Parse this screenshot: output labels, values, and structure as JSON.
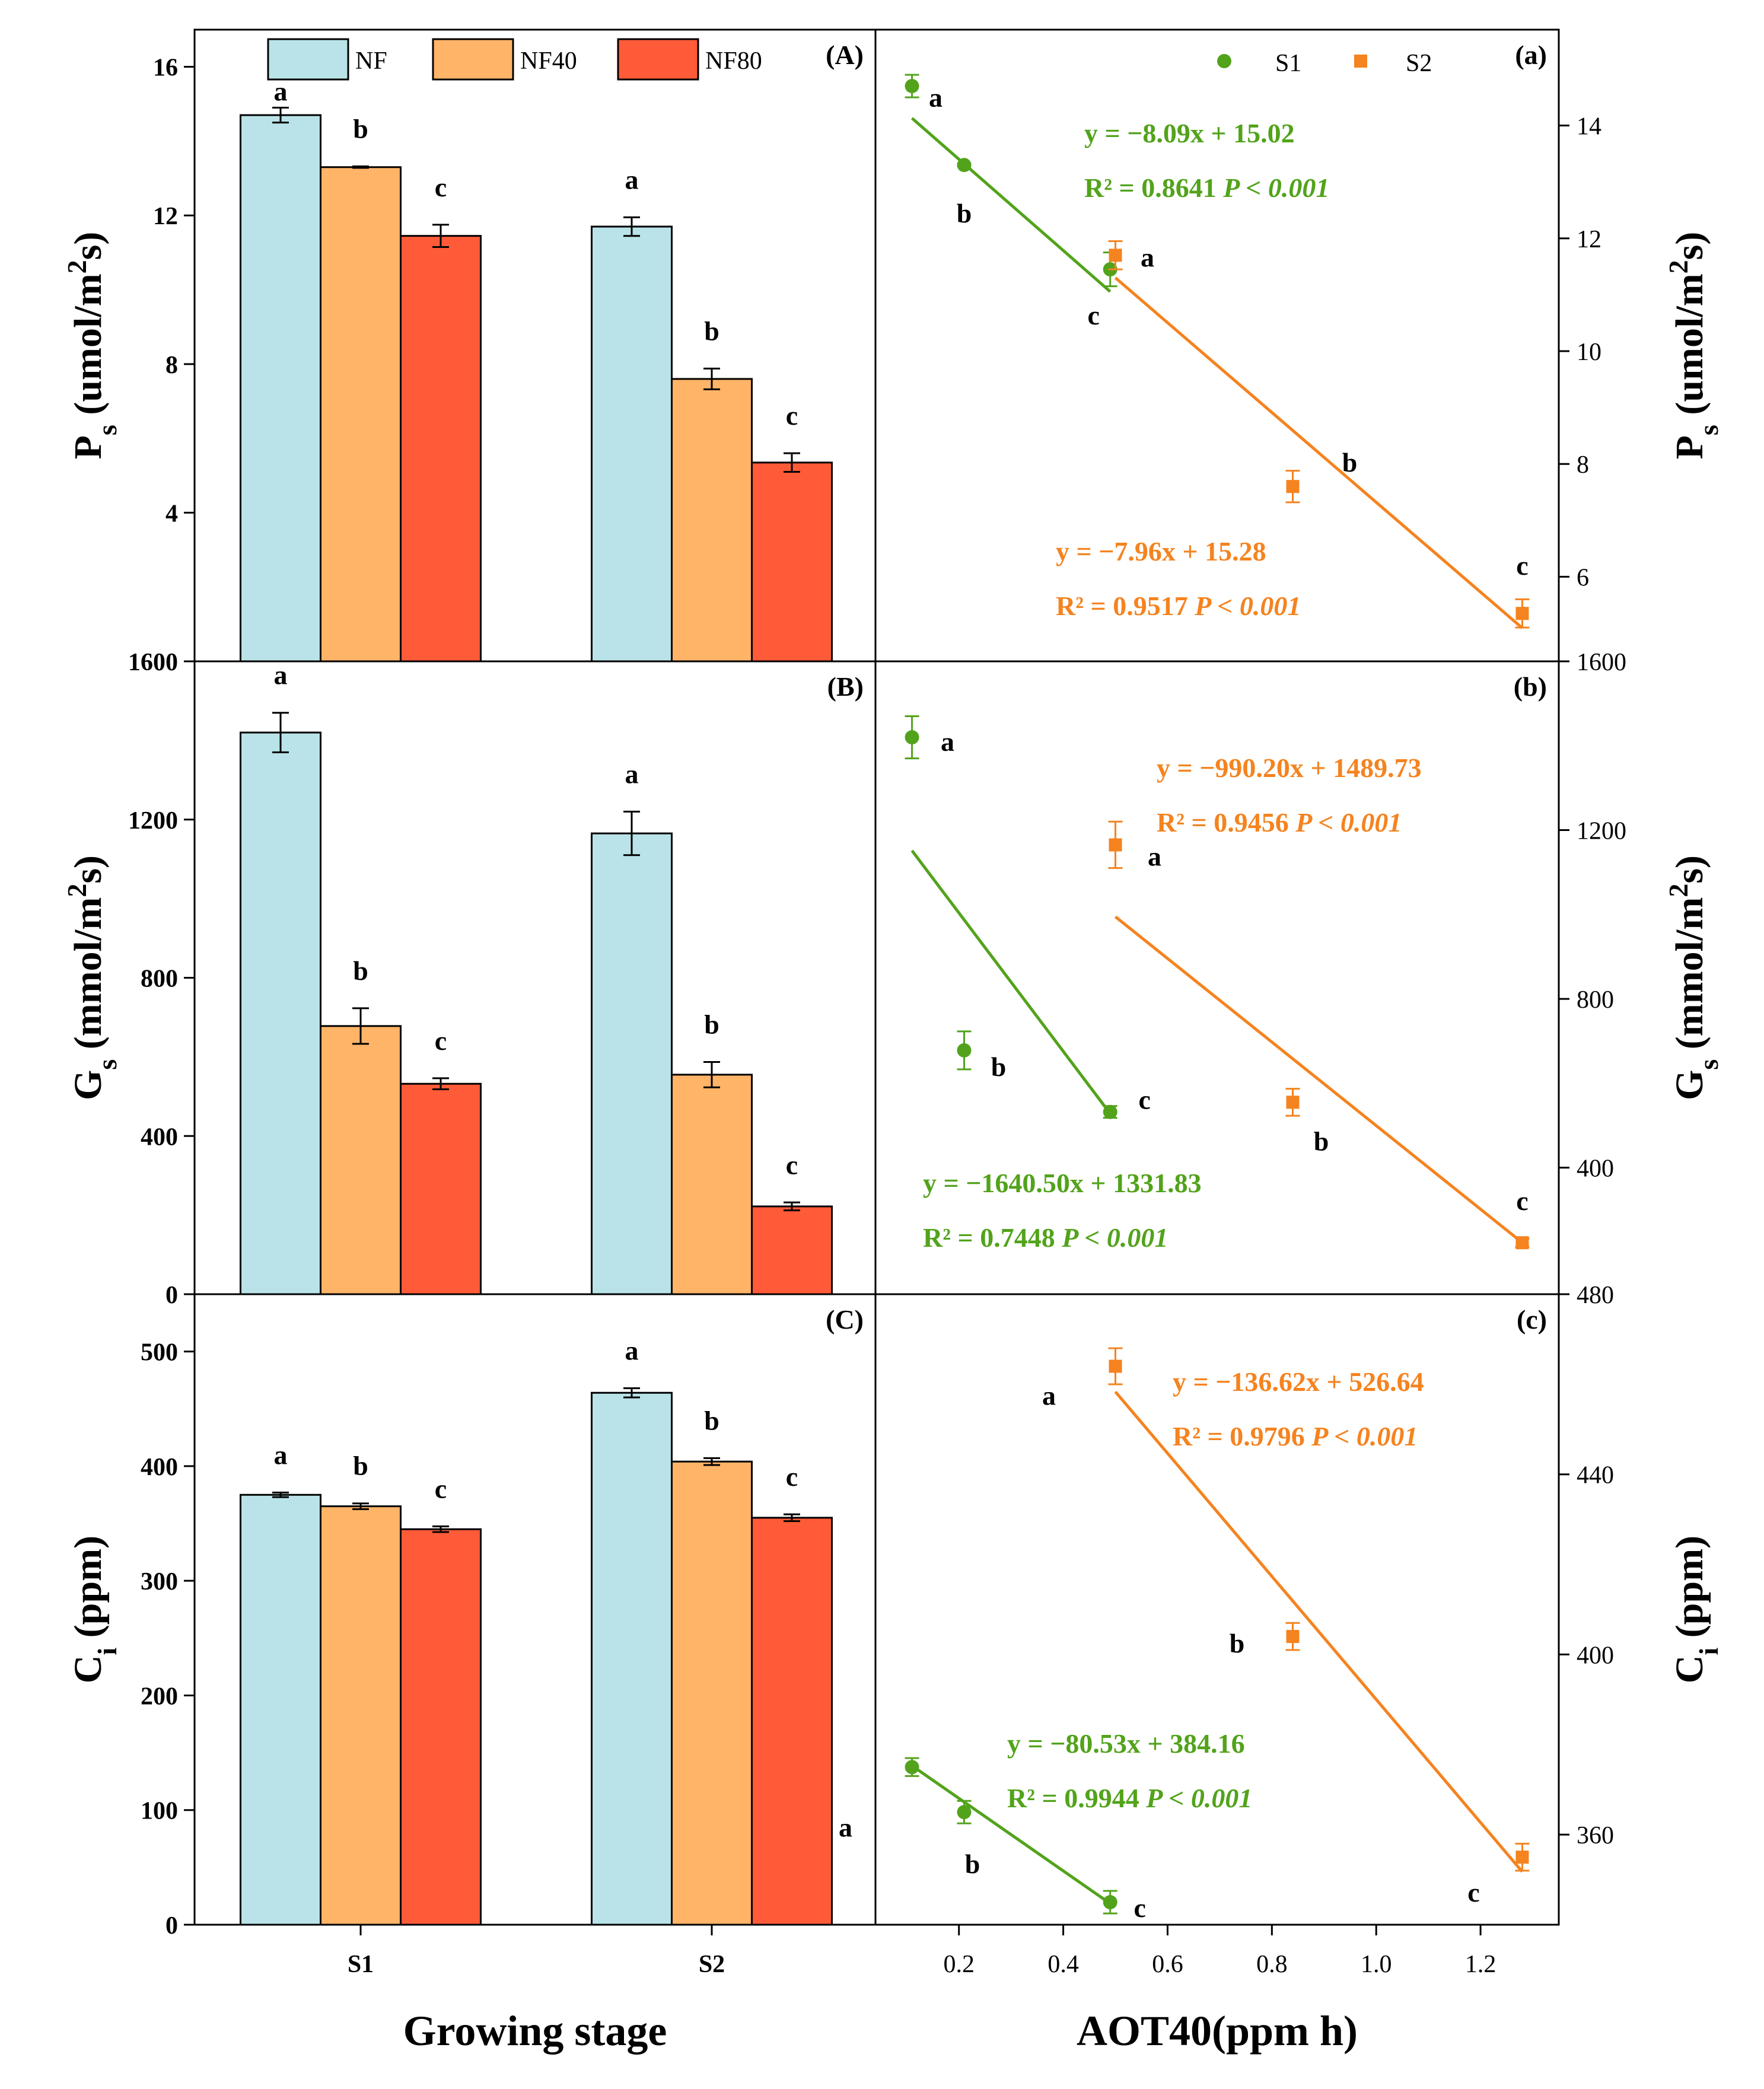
{
  "colors": {
    "NF": "#b9e3e8",
    "NF40": "#ffb468",
    "NF80": "#ff5b38",
    "S1": "#52a31b",
    "S2": "#f5831f"
  },
  "xlabel_left": "Growing stage",
  "xlabel_right": "AOT40(ppm h)",
  "legend_left": [
    "NF",
    "NF40",
    "NF80"
  ],
  "legend_right": [
    "S1",
    "S2"
  ],
  "chart_data": [
    {
      "type": "bar",
      "panel": "(A)",
      "ylabel": "Ps (umol/m2s)",
      "ylabel_main": "P",
      "ylabel_sub": "s",
      "ylabel_rest": " (umol/m",
      "ylabel_sup": "2",
      "ylabel_end": "s)",
      "ylim": [
        0,
        17
      ],
      "yticks": [
        "4",
        "8",
        "12",
        "16"
      ],
      "ytick_values": [
        4,
        8,
        12,
        16
      ],
      "categories": [
        "S1",
        "S2"
      ],
      "series": [
        {
          "name": "NF",
          "values": [
            14.7,
            11.7
          ],
          "errors": [
            0.2,
            0.25
          ],
          "letters": [
            "a",
            "a"
          ]
        },
        {
          "name": "NF40",
          "values": [
            13.3,
            7.6
          ],
          "errors": [
            0.02,
            0.28
          ],
          "letters": [
            "b",
            "b"
          ]
        },
        {
          "name": "NF80",
          "values": [
            11.45,
            5.35
          ],
          "errors": [
            0.3,
            0.25
          ],
          "letters": [
            "c",
            "c"
          ]
        }
      ]
    },
    {
      "type": "bar",
      "panel": "(B)",
      "ylabel": "Gs (mmol/m2s)",
      "ylabel_main": "G",
      "ylabel_sub": "s",
      "ylabel_rest": " (mmol/m",
      "ylabel_sup": "2",
      "ylabel_end": "s)",
      "ylim": [
        0,
        1600
      ],
      "yticks": [
        "0",
        "400",
        "800",
        "1200",
        "1600"
      ],
      "ytick_values": [
        0,
        400,
        800,
        1200,
        1600
      ],
      "categories": [
        "S1",
        "S2"
      ],
      "series": [
        {
          "name": "NF",
          "values": [
            1420,
            1165
          ],
          "errors": [
            50,
            55
          ],
          "letters": [
            "a",
            "a"
          ]
        },
        {
          "name": "NF40",
          "values": [
            678,
            555
          ],
          "errors": [
            45,
            32
          ],
          "letters": [
            "b",
            "b"
          ]
        },
        {
          "name": "NF80",
          "values": [
            532,
            222
          ],
          "errors": [
            14,
            10
          ],
          "letters": [
            "c",
            "c"
          ]
        }
      ]
    },
    {
      "type": "bar",
      "panel": "(C)",
      "ylabel": "Ci (ppm)",
      "ylabel_main": "C",
      "ylabel_sub": "i",
      "ylabel_rest": " (ppm)",
      "ylabel_sup": "",
      "ylabel_end": "",
      "ylim": [
        0,
        550
      ],
      "yticks": [
        "0",
        "100",
        "200",
        "300",
        "400",
        "500"
      ],
      "ytick_values": [
        0,
        100,
        200,
        300,
        400,
        500
      ],
      "categories": [
        "S1",
        "S2"
      ],
      "series": [
        {
          "name": "NF",
          "values": [
            375,
            464
          ],
          "errors": [
            2,
            4
          ],
          "letters": [
            "a",
            "a"
          ]
        },
        {
          "name": "NF40",
          "values": [
            365,
            404
          ],
          "errors": [
            2.5,
            3
          ],
          "letters": [
            "b",
            "b"
          ]
        },
        {
          "name": "NF80",
          "values": [
            345,
            355
          ],
          "errors": [
            2.5,
            3
          ],
          "letters": [
            "c",
            "c"
          ]
        }
      ]
    },
    {
      "type": "scatter",
      "panel": "(a)",
      "xlabel": "AOT40(ppm h)",
      "xlim": [
        0.04,
        1.35
      ],
      "ylim": [
        4.5,
        15.7
      ],
      "yticks": [
        "6",
        "8",
        "10",
        "12",
        "14"
      ],
      "ytick_values": [
        6,
        8,
        10,
        12,
        14
      ],
      "ylabel_main": "P",
      "ylabel_sub": "s",
      "ylabel_rest": " (umol/m",
      "ylabel_sup": "2",
      "ylabel_end": "s)",
      "series": [
        {
          "name": "S1",
          "x": [
            0.11,
            0.21,
            0.49
          ],
          "y": [
            14.7,
            13.3,
            11.45
          ],
          "errors": [
            0.2,
            0.02,
            0.3
          ],
          "letters": [
            "a",
            "b",
            "c"
          ],
          "fit": {
            "equation": "y = −8.09x + 15.02",
            "r2": "R² = 0.8641",
            "p": "P < 0.001",
            "slope": -8.09,
            "intercept": 15.02,
            "x_range": [
              0.11,
              0.49
            ]
          }
        },
        {
          "name": "S2",
          "x": [
            0.5,
            0.84,
            1.28
          ],
          "y": [
            11.7,
            7.6,
            5.35
          ],
          "errors": [
            0.25,
            0.28,
            0.25
          ],
          "letters": [
            "a",
            "b",
            "c"
          ],
          "fit": {
            "equation": "y = −7.96x + 15.28",
            "r2": "R² = 0.9517",
            "p": "P < 0.001",
            "slope": -7.96,
            "intercept": 15.28,
            "x_range": [
              0.5,
              1.28
            ]
          }
        }
      ]
    },
    {
      "type": "scatter",
      "panel": "(b)",
      "xlim": [
        0.04,
        1.35
      ],
      "ylim": [
        100,
        1600
      ],
      "yticks": [
        "400",
        "800",
        "1200",
        "1600"
      ],
      "ytick_values": [
        400,
        800,
        1200,
        1600
      ],
      "ylabel_main": "G",
      "ylabel_sub": "s",
      "ylabel_rest": " (mmol/m",
      "ylabel_sup": "2",
      "ylabel_end": "s)",
      "series": [
        {
          "name": "S1",
          "x": [
            0.11,
            0.21,
            0.49
          ],
          "y": [
            1420,
            678,
            532
          ],
          "errors": [
            50,
            45,
            14
          ],
          "letters": [
            "a",
            "b",
            "c"
          ],
          "fit": {
            "equation": "y = −1640.50x + 1331.83",
            "r2": "R² = 0.7448",
            "p": "P < 0.001",
            "slope": -1640.5,
            "intercept": 1331.83,
            "x_range": [
              0.11,
              0.49
            ]
          }
        },
        {
          "name": "S2",
          "x": [
            0.5,
            0.84,
            1.28
          ],
          "y": [
            1165,
            555,
            222
          ],
          "errors": [
            55,
            32,
            10
          ],
          "letters": [
            "a",
            "b",
            "c"
          ],
          "fit": {
            "equation": "y = −990.20x + 1489.73",
            "r2": "R² = 0.9456",
            "p": "P < 0.001",
            "slope": -990.2,
            "intercept": 1489.73,
            "x_range": [
              0.5,
              1.28
            ]
          }
        }
      ]
    },
    {
      "type": "scatter",
      "panel": "(c)",
      "xlim": [
        0.04,
        1.35
      ],
      "xticks": [
        "0.2",
        "0.4",
        "0.6",
        "0.8",
        "1.0",
        "1.2"
      ],
      "xtick_values": [
        0.2,
        0.4,
        0.6,
        0.8,
        1.0,
        1.2
      ],
      "ylim": [
        340,
        480
      ],
      "yticks": [
        "360",
        "400",
        "440",
        "480"
      ],
      "ytick_values": [
        360,
        400,
        440,
        480
      ],
      "ylabel_main": "C",
      "ylabel_sub": "i",
      "ylabel_rest": " (ppm)",
      "ylabel_sup": "",
      "ylabel_end": "",
      "series": [
        {
          "name": "S1",
          "x": [
            0.11,
            0.21,
            0.49
          ],
          "y": [
            375,
            365,
            345
          ],
          "errors": [
            2,
            2.5,
            2.5
          ],
          "letters": [
            "a",
            "b",
            "c"
          ],
          "fit": {
            "equation": "y = −80.53x + 384.16",
            "r2": "R² = 0.9944",
            "p": "P < 0.001",
            "slope": -80.53,
            "intercept": 384.16,
            "x_range": [
              0.11,
              0.49
            ]
          }
        },
        {
          "name": "S2",
          "x": [
            0.5,
            0.84,
            1.28
          ],
          "y": [
            464,
            404,
            355
          ],
          "errors": [
            4,
            3,
            3
          ],
          "letters": [
            "a",
            "b",
            "c"
          ],
          "fit": {
            "equation": "y = −136.62x + 526.64",
            "r2": "R² = 0.9796",
            "p": "P < 0.001",
            "slope": -136.62,
            "intercept": 526.64,
            "x_range": [
              0.5,
              1.28
            ]
          }
        }
      ]
    }
  ]
}
